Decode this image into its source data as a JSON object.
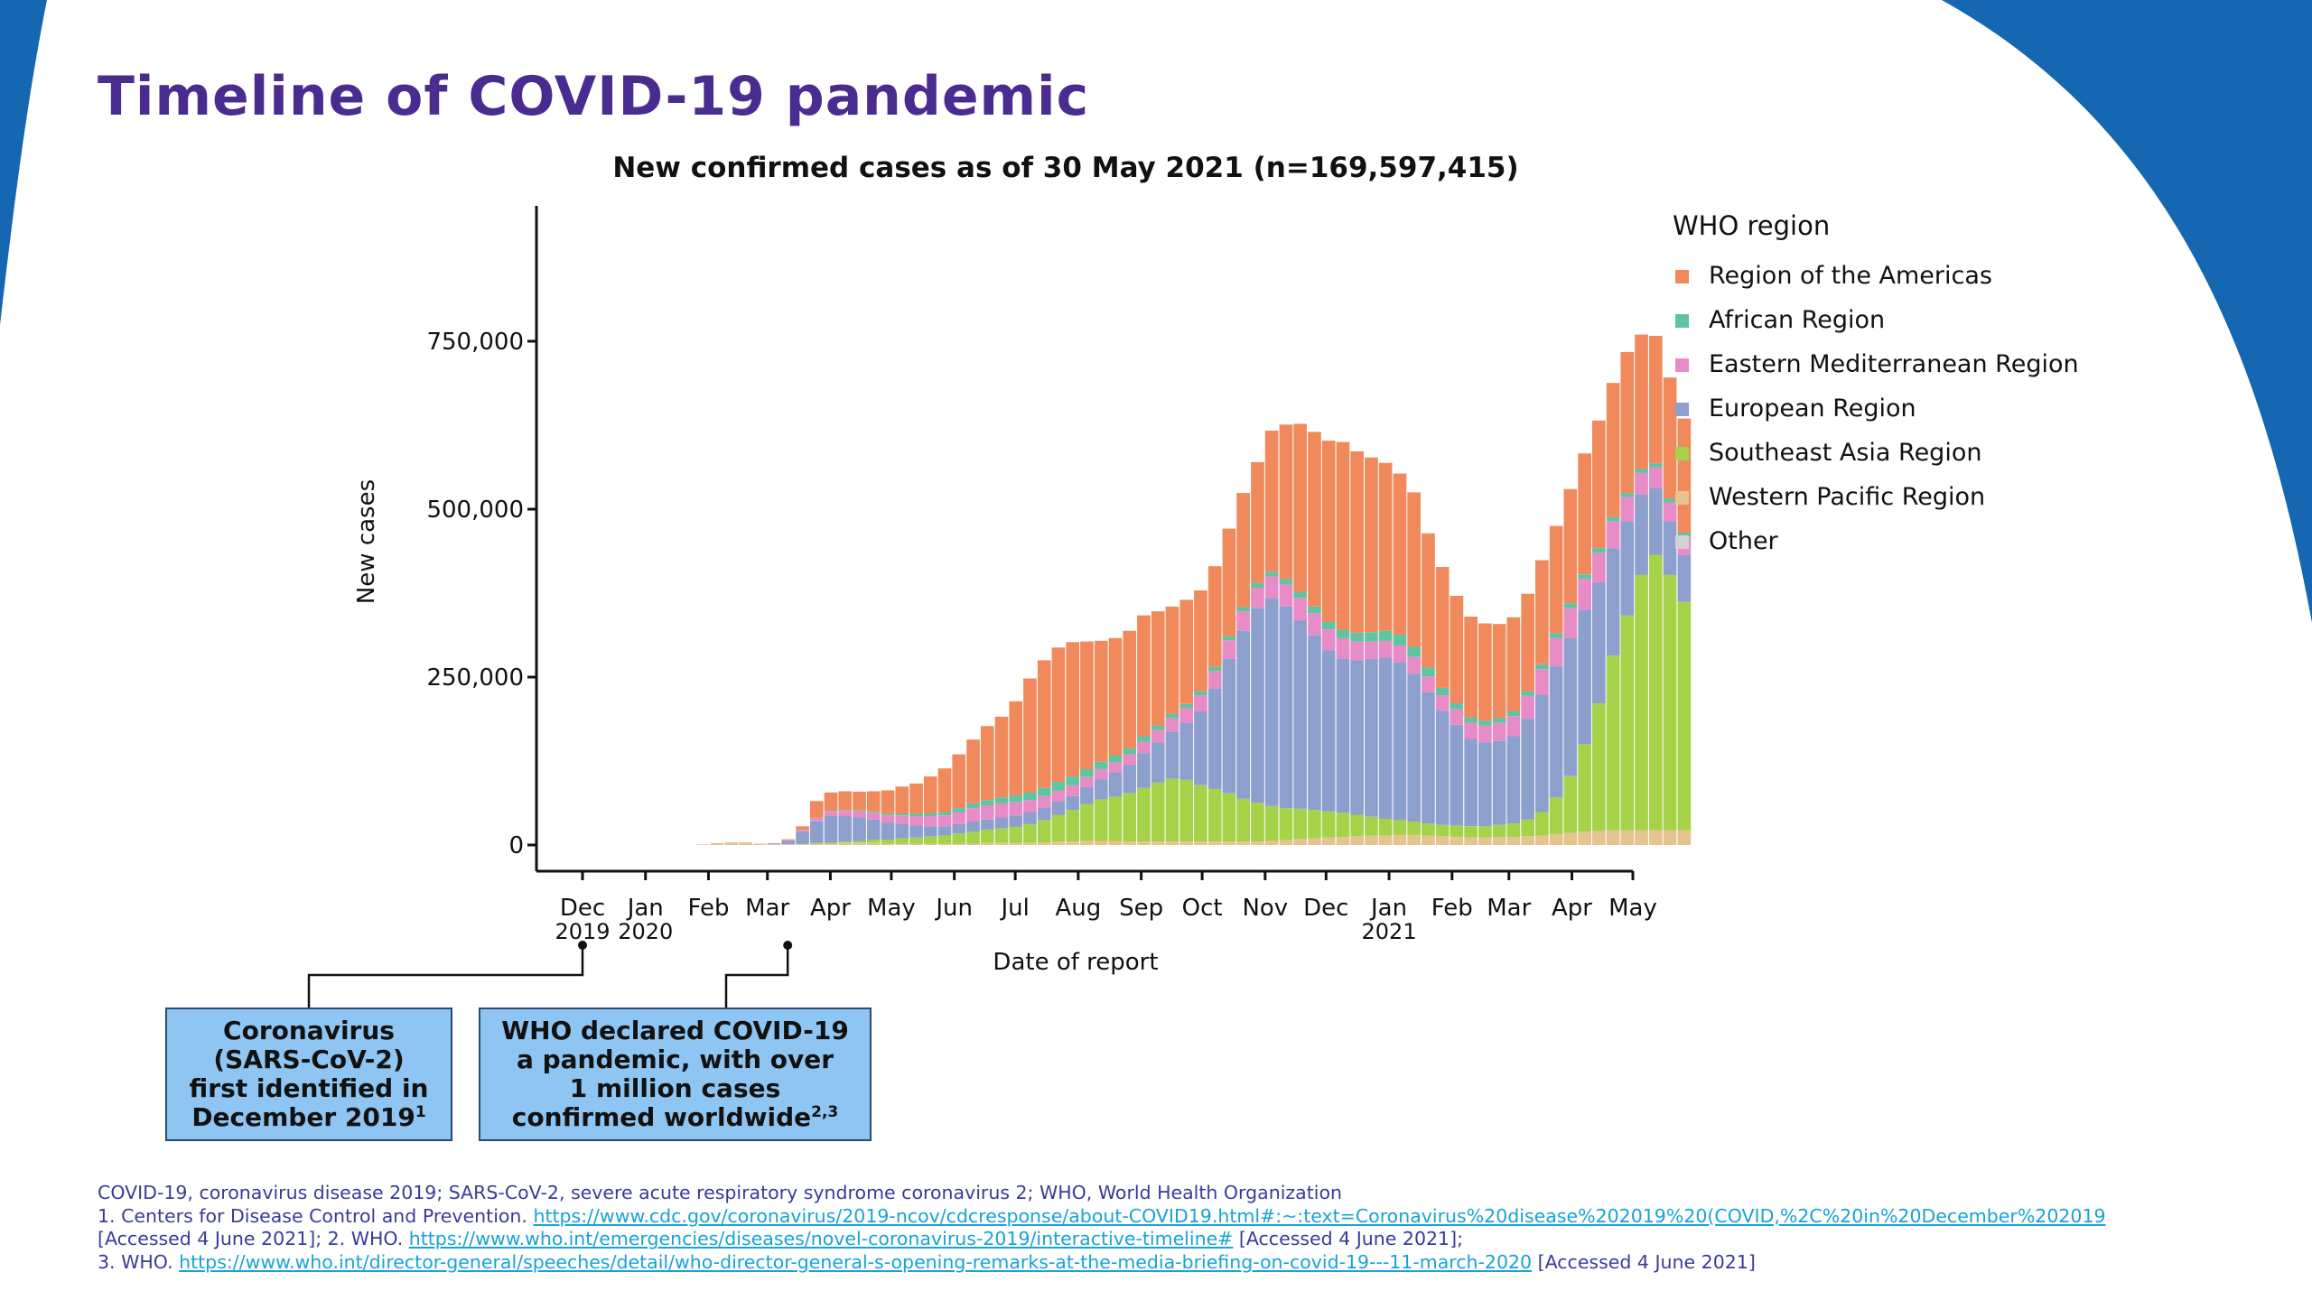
{
  "slide": {
    "title": "Timeline of COVID-19 pandemic",
    "brand_color": "#4a2c91",
    "bg_shape_color": "#1467b0"
  },
  "chart_data": {
    "type": "bar",
    "stacked": true,
    "title": "New confirmed cases as of 30 May 2021 (n=169,597,415)",
    "xlabel": "Date of report",
    "ylabel": "New cases",
    "ylim": [
      0,
      940000
    ],
    "y_ticks": [
      {
        "value": 0,
        "label": "0"
      },
      {
        "value": 250000,
        "label": "250,000"
      },
      {
        "value": 500000,
        "label": "500,000"
      },
      {
        "value": 750000,
        "label": "750,000"
      }
    ],
    "x_ticks": [
      {
        "date": "2019-12-01",
        "label": "Dec",
        "label2": "2019"
      },
      {
        "date": "2020-01-01",
        "label": "Jan",
        "label2": "2020"
      },
      {
        "date": "2020-02-01",
        "label": "Feb",
        "label2": ""
      },
      {
        "date": "2020-03-01",
        "label": "Mar",
        "label2": ""
      },
      {
        "date": "2020-04-01",
        "label": "Apr",
        "label2": ""
      },
      {
        "date": "2020-05-01",
        "label": "May",
        "label2": ""
      },
      {
        "date": "2020-06-01",
        "label": "Jun",
        "label2": ""
      },
      {
        "date": "2020-07-01",
        "label": "Jul",
        "label2": ""
      },
      {
        "date": "2020-08-01",
        "label": "Aug",
        "label2": ""
      },
      {
        "date": "2020-09-01",
        "label": "Sep",
        "label2": ""
      },
      {
        "date": "2020-10-01",
        "label": "Oct",
        "label2": ""
      },
      {
        "date": "2020-11-01",
        "label": "Nov",
        "label2": ""
      },
      {
        "date": "2020-12-01",
        "label": "Dec",
        "label2": ""
      },
      {
        "date": "2021-01-01",
        "label": "Jan",
        "label2": "2021"
      },
      {
        "date": "2021-02-01",
        "label": "Feb",
        "label2": ""
      },
      {
        "date": "2021-03-01",
        "label": "Mar",
        "label2": ""
      },
      {
        "date": "2021-04-01",
        "label": "Apr",
        "label2": ""
      },
      {
        "date": "2021-05-01",
        "label": "May",
        "label2": ""
      }
    ],
    "legend": {
      "title": "WHO region",
      "position": "right",
      "items": [
        {
          "name": "Region of the Americas",
          "color": "#f08a5d"
        },
        {
          "name": "African Region",
          "color": "#5fc4a0"
        },
        {
          "name": "Eastern Mediterranean Region",
          "color": "#e88cc8"
        },
        {
          "name": "European Region",
          "color": "#8d9fcc"
        },
        {
          "name": "Southeast Asia Region",
          "color": "#a6d24a"
        },
        {
          "name": "Western Pacific Region",
          "color": "#e6c48f"
        },
        {
          "name": "Other",
          "color": "#d2d2d2"
        }
      ]
    },
    "period": "weekly (approximate, read from daily bars)",
    "weeks": [
      "2019-12-29",
      "2020-01-05",
      "2020-01-12",
      "2020-01-19",
      "2020-01-26",
      "2020-02-02",
      "2020-02-09",
      "2020-02-16",
      "2020-02-23",
      "2020-03-01",
      "2020-03-08",
      "2020-03-15",
      "2020-03-22",
      "2020-03-29",
      "2020-04-05",
      "2020-04-12",
      "2020-04-19",
      "2020-04-26",
      "2020-05-03",
      "2020-05-10",
      "2020-05-17",
      "2020-05-24",
      "2020-05-31",
      "2020-06-07",
      "2020-06-14",
      "2020-06-21",
      "2020-06-28",
      "2020-07-05",
      "2020-07-12",
      "2020-07-19",
      "2020-07-26",
      "2020-08-02",
      "2020-08-09",
      "2020-08-16",
      "2020-08-23",
      "2020-08-30",
      "2020-09-06",
      "2020-09-13",
      "2020-09-20",
      "2020-09-27",
      "2020-10-04",
      "2020-10-11",
      "2020-10-18",
      "2020-10-25",
      "2020-11-01",
      "2020-11-08",
      "2020-11-15",
      "2020-11-22",
      "2020-11-29",
      "2020-12-06",
      "2020-12-13",
      "2020-12-20",
      "2020-12-27",
      "2021-01-03",
      "2021-01-10",
      "2021-01-17",
      "2021-01-24",
      "2021-01-31",
      "2021-02-07",
      "2021-02-14",
      "2021-02-21",
      "2021-02-28",
      "2021-03-07",
      "2021-03-14",
      "2021-03-21",
      "2021-03-28",
      "2021-04-04",
      "2021-04-11",
      "2021-04-18",
      "2021-04-25",
      "2021-05-02",
      "2021-05-09",
      "2021-05-16",
      "2021-05-23"
    ],
    "series": [
      {
        "name": "Western Pacific Region",
        "values": [
          0,
          0,
          0,
          100,
          1000,
          3000,
          4000,
          4000,
          2000,
          1000,
          1000,
          1000,
          2000,
          2000,
          3000,
          3000,
          3000,
          2000,
          2000,
          2000,
          2000,
          2000,
          2000,
          2000,
          3000,
          3000,
          3000,
          3000,
          4000,
          5000,
          5000,
          6000,
          6000,
          6000,
          5000,
          5000,
          5000,
          5000,
          5000,
          5000,
          5000,
          5000,
          5000,
          5000,
          6000,
          7000,
          9000,
          10000,
          11000,
          12000,
          13000,
          14000,
          14000,
          15000,
          15000,
          14000,
          13000,
          12000,
          11000,
          11000,
          12000,
          12000,
          13000,
          14000,
          16000,
          18000,
          20000,
          21000,
          22000,
          22000,
          22000,
          22000,
          22000,
          22000
        ]
      },
      {
        "name": "Southeast Asia Region",
        "values": [
          0,
          0,
          0,
          0,
          0,
          0,
          0,
          0,
          0,
          0,
          0,
          500,
          1000,
          1500,
          2000,
          3000,
          5000,
          6000,
          8000,
          9000,
          11000,
          12000,
          15000,
          18000,
          20000,
          22000,
          24000,
          28000,
          33000,
          40000,
          47000,
          55000,
          62000,
          66000,
          72000,
          80000,
          88000,
          94000,
          92000,
          84000,
          78000,
          72000,
          64000,
          58000,
          52000,
          48000,
          45000,
          42000,
          39000,
          36000,
          32000,
          28000,
          25000,
          22000,
          20000,
          18000,
          17000,
          17000,
          17000,
          17000,
          18000,
          20000,
          25000,
          35000,
          55000,
          85000,
          130000,
          190000,
          260000,
          320000,
          380000,
          410000,
          380000,
          340000
        ]
      },
      {
        "name": "European Region",
        "values": [
          0,
          0,
          0,
          0,
          0,
          0,
          0,
          0,
          0,
          1000,
          5000,
          18000,
          32000,
          40000,
          38000,
          35000,
          30000,
          25000,
          22000,
          18000,
          15000,
          14000,
          14000,
          15000,
          15000,
          16000,
          17000,
          18000,
          19000,
          20000,
          21000,
          25000,
          30000,
          36000,
          42000,
          52000,
          60000,
          70000,
          85000,
          110000,
          150000,
          200000,
          250000,
          290000,
          310000,
          300000,
          280000,
          260000,
          240000,
          230000,
          230000,
          235000,
          240000,
          235000,
          220000,
          195000,
          170000,
          150000,
          130000,
          125000,
          125000,
          130000,
          150000,
          175000,
          195000,
          205000,
          200000,
          180000,
          160000,
          140000,
          120000,
          100000,
          80000,
          70000
        ]
      },
      {
        "name": "Eastern Mediterranean Region",
        "values": [
          0,
          0,
          0,
          0,
          0,
          0,
          0,
          0,
          0,
          500,
          1500,
          3000,
          5000,
          6000,
          8000,
          9000,
          10000,
          11000,
          12000,
          14000,
          15000,
          16000,
          18000,
          20000,
          21000,
          21000,
          20000,
          18000,
          17000,
          16000,
          16000,
          15000,
          15000,
          15000,
          16000,
          17000,
          18000,
          20000,
          22000,
          24000,
          26000,
          28000,
          29000,
          30000,
          32000,
          33000,
          34000,
          33000,
          31000,
          30000,
          28000,
          26000,
          25000,
          25000,
          25000,
          24000,
          23000,
          23000,
          24000,
          25000,
          27000,
          30000,
          34000,
          38000,
          42000,
          45000,
          46000,
          44000,
          40000,
          36000,
          32000,
          30000,
          28000,
          27000
        ]
      },
      {
        "name": "African Region",
        "values": [
          0,
          0,
          0,
          0,
          0,
          0,
          0,
          0,
          0,
          0,
          100,
          300,
          500,
          700,
          1000,
          1500,
          2000,
          2500,
          3000,
          3500,
          4000,
          5000,
          6000,
          7000,
          8000,
          9000,
          10000,
          11000,
          12000,
          13000,
          13000,
          12000,
          11000,
          10000,
          9000,
          8000,
          7000,
          6000,
          6000,
          6000,
          6000,
          6000,
          6000,
          7000,
          7000,
          8000,
          9000,
          10000,
          11000,
          12000,
          13000,
          14000,
          15000,
          16000,
          15000,
          13000,
          11000,
          9000,
          8000,
          7000,
          7000,
          7000,
          7000,
          7000,
          7000,
          7000,
          7000,
          7000,
          6000,
          6000,
          6000,
          6000,
          6000,
          6000
        ]
      },
      {
        "name": "Region of the Americas",
        "values": [
          0,
          0,
          0,
          0,
          0,
          0,
          0,
          0,
          0,
          100,
          1000,
          5000,
          25000,
          28000,
          28000,
          28000,
          30000,
          35000,
          40000,
          45000,
          55000,
          65000,
          80000,
          95000,
          110000,
          120000,
          140000,
          170000,
          190000,
          200000,
          200000,
          190000,
          180000,
          175000,
          175000,
          180000,
          170000,
          160000,
          155000,
          150000,
          150000,
          160000,
          170000,
          180000,
          210000,
          230000,
          250000,
          260000,
          270000,
          280000,
          270000,
          260000,
          250000,
          240000,
          230000,
          200000,
          180000,
          160000,
          150000,
          145000,
          140000,
          140000,
          145000,
          155000,
          160000,
          170000,
          180000,
          190000,
          200000,
          210000,
          200000,
          190000,
          180000,
          170000
        ]
      },
      {
        "name": "Other",
        "values": [
          0,
          0,
          0,
          0,
          0,
          0,
          0,
          0,
          0,
          0,
          0,
          0,
          0,
          0,
          0,
          0,
          0,
          0,
          0,
          0,
          0,
          0,
          0,
          0,
          0,
          0,
          0,
          0,
          0,
          0,
          0,
          0,
          0,
          0,
          0,
          0,
          0,
          0,
          0,
          0,
          0,
          0,
          0,
          0,
          0,
          0,
          0,
          0,
          0,
          0,
          0,
          0,
          0,
          0,
          0,
          0,
          0,
          0,
          0,
          0,
          0,
          0,
          0,
          0,
          0,
          0,
          0,
          0,
          0,
          0,
          0,
          0,
          0,
          0
        ]
      }
    ]
  },
  "callouts": [
    {
      "id": "callout-1",
      "date": "2019-12-01",
      "lines": [
        "Coronavirus",
        "(SARS-CoV-2)",
        "first identified in",
        "December 2019"
      ],
      "sup": "1"
    },
    {
      "id": "callout-2",
      "date": "2020-03-11",
      "lines": [
        "WHO declared COVID-19",
        "a pandemic, with over",
        "1 million cases",
        "confirmed worldwide"
      ],
      "sup": "2,3"
    }
  ],
  "footnotes": {
    "abbreviations": "COVID-19, coronavirus disease 2019; SARS-CoV-2, severe acute respiratory syndrome coronavirus 2; WHO, World Health Organization",
    "ref1_prefix": "1. Centers for Disease Control and Prevention. ",
    "ref1_url": "https://www.cdc.gov/coronavirus/2019-ncov/cdcresponse/about-COVID19.html#:~:text=Coronavirus%20disease%202019%20(COVID,%2C%20in%20December%202019",
    "ref1_accessed": "[Accessed 4 June 2021]; 2. WHO. ",
    "ref2_url": "https://www.who.int/emergencies/diseases/novel-coronavirus-2019/interactive-timeline#",
    "ref2_accessed": " [Accessed 4 June 2021];",
    "ref3_prefix": "3. WHO. ",
    "ref3_url": "https://www.who.int/director-general/speeches/detail/who-director-general-s-opening-remarks-at-the-media-briefing-on-covid-19---11-march-2020",
    "ref3_accessed": " [Accessed 4 June 2021]"
  }
}
